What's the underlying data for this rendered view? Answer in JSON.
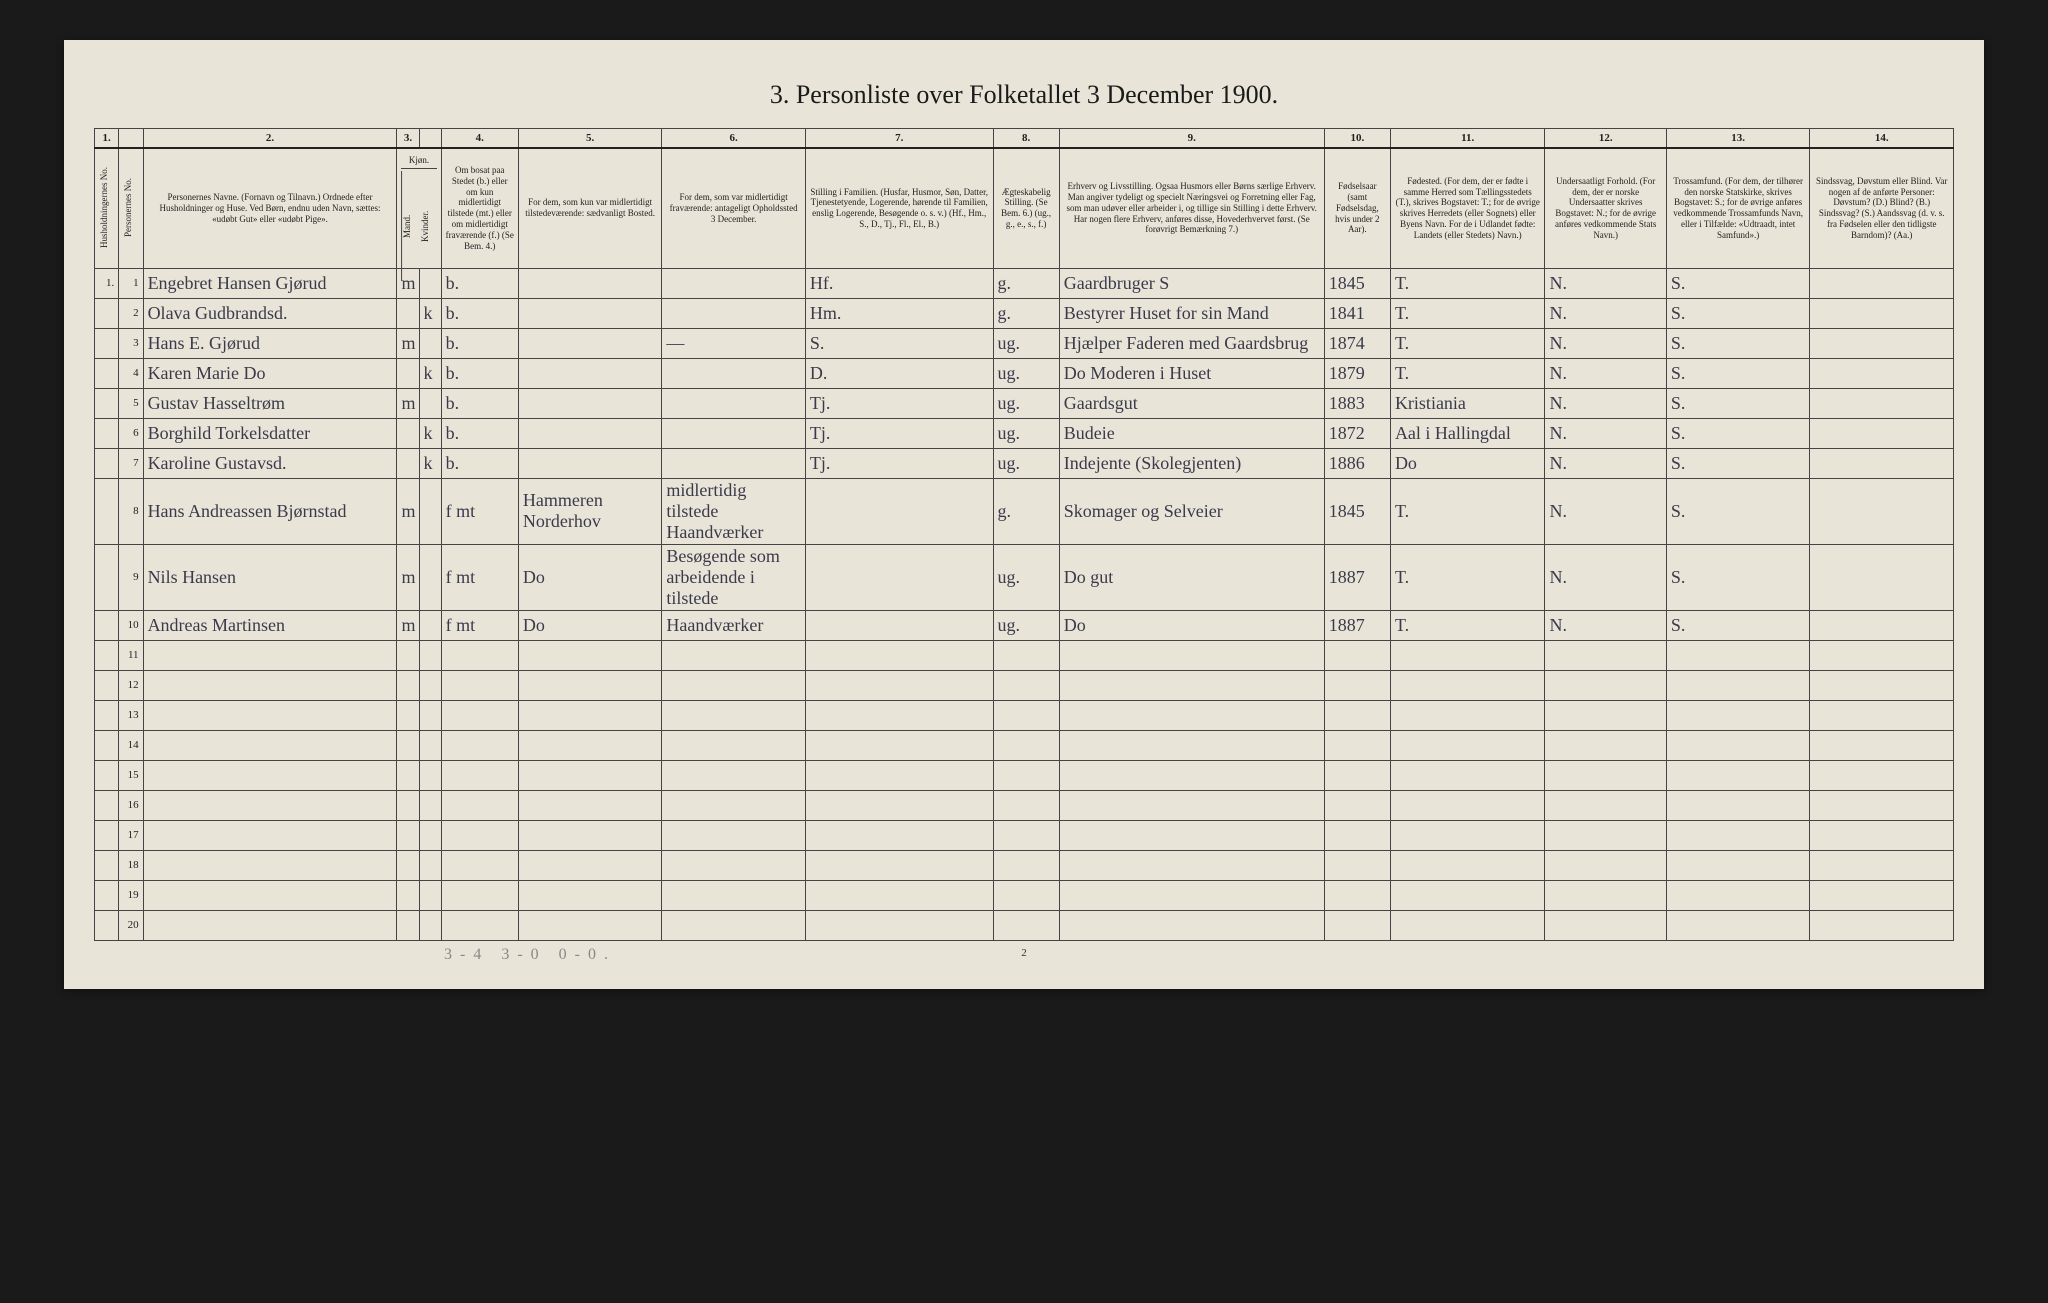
{
  "title": "3. Personliste over Folketallet 3 December 1900.",
  "column_numbers": [
    "1.",
    "",
    "2.",
    "3.",
    "",
    "4.",
    "5.",
    "6.",
    "7.",
    "8.",
    "9.",
    "10.",
    "11.",
    "12.",
    "13.",
    "14."
  ],
  "headers": {
    "c1a": "Husholdningernes No.",
    "c1b": "Personernes No.",
    "c2": "Personernes Navne.\n(Fornavn og Tilnavn.)\nOrdnede efter Husholdninger og Huse.\nVed Børn, endnu uden Navn, sættes: «udøbt Gut» eller «udøbt Pige».",
    "c3": "Kjøn.",
    "c3a": "Mand.",
    "c3b": "Kvinder.",
    "c4": "Om bosat paa Stedet (b.) eller om kun midlertidigt tilstede (mt.) eller om midlertidigt fraværende (f.)\n(Se Bem. 4.)",
    "c5": "For dem, som kun var midlertidigt tilstedeværende:\nsædvanligt Bosted.",
    "c6": "For dem, som var midlertidigt fraværende:\nantageligt Opholdssted 3 December.",
    "c7": "Stilling i Familien.\n(Husfar, Husmor, Søn, Datter, Tjenestetyende, Logerende, hørende til Familien, enslig Logerende, Besøgende o. s. v.)\n(Hf., Hm., S., D., Tj., Fl., El., B.)",
    "c8": "Ægteskabelig Stilling.\n(Se Bem. 6.)\n(ug., g., e., s., f.)",
    "c9": "Erhverv og Livsstilling.\nOgsaa Husmors eller Børns særlige Erhverv.\nMan angiver tydeligt og specielt Næringsvei og Forretning eller Fag, som man udøver eller arbeider i, og tillige sin Stilling i dette Erhverv.\nHar nogen flere Erhverv, anføres disse, Hovederhvervet først.\n(Se forøvrigt Bemærkning 7.)",
    "c10": "Fødselsaar\n(samt Fødselsdag, hvis under 2 Aar).",
    "c11": "Fødested.\n(For dem, der er fødte i samme Herred som Tællingsstedets (T.), skrives Bogstavet: T.; for de øvrige skrives Herredets (eller Sognets) eller Byens Navn.\nFor de i Udlandet fødte: Landets (eller Stedets) Navn.)",
    "c12": "Undersaatligt Forhold.\n(For dem, der er norske Undersaatter skrives Bogstavet: N.; for de øvrige anføres vedkommende Stats Navn.)",
    "c13": "Trossamfund.\n(For dem, der tilhører den norske Statskirke, skrives Bogstavet: S.; for de øvrige anføres vedkommende Trossamfunds Navn, eller i Tilfælde: «Udtraadt, intet Samfund».)",
    "c14": "Sindssvag, Døvstum eller Blind.\nVar nogen af de anførte Personer:\nDøvstum? (D.)\nBlind? (B.)\nSindssvag? (S.)\nAandssvag (d. v. s. fra Fødselen eller den tidligste Barndom)? (Aa.)"
  },
  "rows": [
    {
      "hno": "1.",
      "pno": "1",
      "name": "Engebret Hansen Gjørud",
      "m": "m",
      "k": "",
      "res": "b.",
      "c5": "",
      "c6": "",
      "c7": "Hf.",
      "c8": "g.",
      "c9": "Gaardbruger S",
      "c10": "1845",
      "c11": "T.",
      "c12": "N.",
      "c13": "S.",
      "c14": ""
    },
    {
      "hno": "",
      "pno": "2",
      "name": "Olava Gudbrandsd.",
      "m": "",
      "k": "k",
      "res": "b.",
      "c5": "",
      "c6": "",
      "c7": "Hm.",
      "c8": "g.",
      "c9": "Bestyrer Huset for sin Mand",
      "c10": "1841",
      "c11": "T.",
      "c12": "N.",
      "c13": "S.",
      "c14": ""
    },
    {
      "hno": "",
      "pno": "3",
      "name": "Hans E. Gjørud",
      "m": "m",
      "k": "",
      "res": "b.",
      "c5": "",
      "c6": "—",
      "c7": "S.",
      "c8": "ug.",
      "c9": "Hjælper Faderen med Gaardsbrug",
      "c10": "1874",
      "c11": "T.",
      "c12": "N.",
      "c13": "S.",
      "c14": ""
    },
    {
      "hno": "",
      "pno": "4",
      "name": "Karen Marie Do",
      "m": "",
      "k": "k",
      "res": "b.",
      "c5": "",
      "c6": "",
      "c7": "D.",
      "c8": "ug.",
      "c9": "Do Moderen i Huset",
      "c10": "1879",
      "c11": "T.",
      "c12": "N.",
      "c13": "S.",
      "c14": ""
    },
    {
      "hno": "",
      "pno": "5",
      "name": "Gustav Hasseltrøm",
      "m": "m",
      "k": "",
      "res": "b.",
      "c5": "",
      "c6": "",
      "c7": "Tj.",
      "c8": "ug.",
      "c9": "Gaardsgut",
      "c10": "1883",
      "c11": "Kristiania",
      "c12": "N.",
      "c13": "S.",
      "c14": ""
    },
    {
      "hno": "",
      "pno": "6",
      "name": "Borghild Torkelsdatter",
      "m": "",
      "k": "k",
      "res": "b.",
      "c5": "",
      "c6": "",
      "c7": "Tj.",
      "c8": "ug.",
      "c9": "Budeie",
      "c10": "1872",
      "c11": "Aal i Hallingdal",
      "c12": "N.",
      "c13": "S.",
      "c14": ""
    },
    {
      "hno": "",
      "pno": "7",
      "name": "Karoline Gustavsd.",
      "m": "",
      "k": "k",
      "res": "b.",
      "c5": "",
      "c6": "",
      "c7": "Tj.",
      "c8": "ug.",
      "c9": "Indejente (Skolegjenten)",
      "c10": "1886",
      "c11": "Do",
      "c12": "N.",
      "c13": "S.",
      "c14": ""
    },
    {
      "hno": "",
      "pno": "8",
      "name": "Hans Andreassen Bjørnstad",
      "m": "m",
      "k": "",
      "res": "f mt",
      "c5": "Hammeren Norderhov",
      "c6": "midlertidig tilstede Haandværker",
      "c7": "",
      "c8": "g.",
      "c9": "Skomager og Selveier",
      "c10": "1845",
      "c11": "T.",
      "c12": "N.",
      "c13": "S.",
      "c14": ""
    },
    {
      "hno": "",
      "pno": "9",
      "name": "Nils Hansen",
      "m": "m",
      "k": "",
      "res": "f mt",
      "c5": "Do",
      "c6": "Besøgende som arbeidende i tilstede",
      "c7": "",
      "c8": "ug.",
      "c9": "Do gut",
      "c10": "1887",
      "c11": "T.",
      "c12": "N.",
      "c13": "S.",
      "c14": ""
    },
    {
      "hno": "",
      "pno": "10",
      "name": "Andreas Martinsen",
      "m": "m",
      "k": "",
      "res": "f mt",
      "c5": "Do",
      "c6": "Haandværker",
      "c7": "",
      "c8": "ug.",
      "c9": "Do",
      "c10": "1887",
      "c11": "T.",
      "c12": "N.",
      "c13": "S.",
      "c14": ""
    }
  ],
  "empty_row_numbers": [
    "11",
    "12",
    "13",
    "14",
    "15",
    "16",
    "17",
    "18",
    "19",
    "20"
  ],
  "page_number": "2",
  "pencil_note": "3-4  3-0  0-0."
}
